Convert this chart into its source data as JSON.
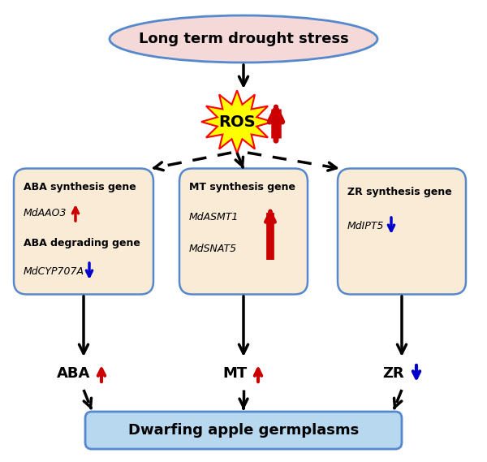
{
  "title": "Long term drought stress",
  "ros_label": "ROS",
  "box_bg": "#faebd7",
  "box_edge": "#5588cc",
  "bottom_box_bg": "#b8d8f0",
  "ellipse_bg": "#f5d8d8",
  "ellipse_edge": "#5588cc",
  "red_color": "#cc0000",
  "blue_color": "#0000cc",
  "black_color": "#000000",
  "left_box_lines": [
    "ABA synthesis gene",
    "MdAAO3",
    "up_red",
    "ABA degrading gene",
    "MdCYP707A",
    "down_blue"
  ],
  "mid_box_lines": [
    "MT synthesis gene",
    "MdASMT1",
    "MdSNAT5",
    "up_red"
  ],
  "right_box_lines": [
    "ZR synthesis gene",
    "MdIPT5",
    "down_blue"
  ],
  "bottom_label": "Dwarfing apple germplasms",
  "aba_label": "ABA",
  "mt_label": "MT",
  "zr_label": "ZR",
  "fig_w": 6.0,
  "fig_h": 5.69,
  "dpi": 100
}
